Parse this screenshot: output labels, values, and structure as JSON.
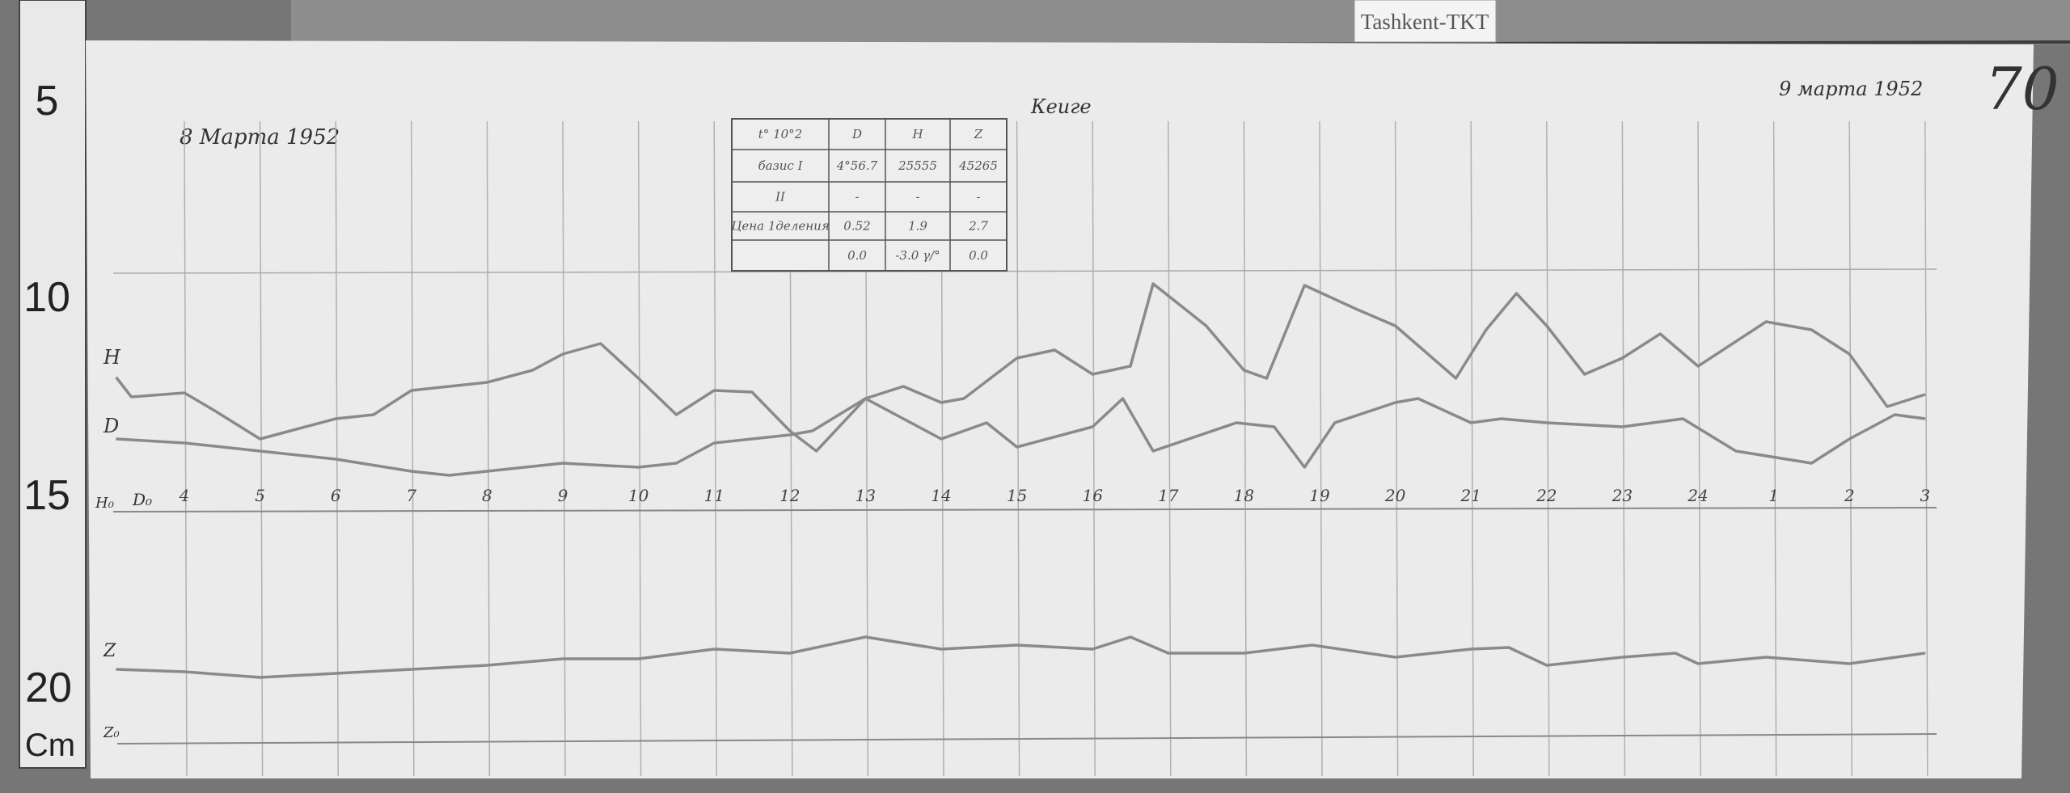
{
  "station_label": "Tashkent-TKT",
  "sheet_number": "70",
  "date_start": "8 Марта 1952",
  "date_end": "9 марта 1952",
  "observer": "Кеиге",
  "ruler": {
    "marks": [
      "5",
      "10",
      "15",
      "20"
    ],
    "unit": "Cm"
  },
  "table": {
    "header": [
      "t° 10°2",
      "D",
      "H",
      "Z"
    ],
    "rows": [
      [
        "базис I",
        "4°56.7",
        "25555",
        "45265"
      ],
      [
        "II",
        "-",
        "-",
        "-"
      ],
      [
        "Цена 1деления",
        "0.52",
        "1.9",
        "2.7"
      ],
      [
        "",
        "0.0",
        "-3.0 γ/°",
        "0.0"
      ]
    ]
  },
  "chart_data": {
    "type": "line",
    "title": "",
    "xlabel": "",
    "ylabel": "",
    "x_tick_labels": [
      "4",
      "5",
      "6",
      "7",
      "8",
      "9",
      "10",
      "11",
      "12",
      "13",
      "14",
      "15",
      "16",
      "17",
      "18",
      "19",
      "20",
      "21",
      "22",
      "23",
      "24",
      "1",
      "2",
      "3"
    ],
    "grid": true,
    "baseline_labels": {
      "H": "H₀",
      "D": "D₀",
      "Z": "Z₀"
    },
    "series": [
      {
        "name": "H",
        "color": "#8a8a8a",
        "x": [
          3.1,
          3.3,
          4,
          4.4,
          5,
          5.4,
          6,
          6.5,
          7,
          7.5,
          8,
          8.6,
          9,
          9.5,
          10,
          10.5,
          11,
          11.5,
          12,
          12.35,
          13,
          13.5,
          14,
          14.3,
          15,
          15.5,
          16,
          16.5,
          16.8,
          17.5,
          18,
          18.3,
          18.8,
          19.5,
          20,
          20.8,
          21.2,
          21.6,
          22,
          22.5,
          23,
          23.5,
          24,
          24.9,
          25.5,
          26,
          26.5,
          27
        ],
        "y": [
          16.6,
          14.2,
          14.7,
          12.5,
          9.0,
          10.0,
          11.5,
          12.0,
          15.0,
          15.5,
          16.0,
          17.5,
          19.5,
          20.8,
          16.5,
          12.0,
          15.0,
          14.8,
          10.0,
          7.5,
          14.0,
          15.5,
          13.5,
          14.0,
          19.0,
          20.0,
          17.0,
          18.0,
          28.2,
          23.0,
          17.5,
          16.5,
          28.0,
          25.0,
          23.0,
          16.5,
          22.5,
          27.0,
          23.0,
          17.0,
          19.0,
          22.0,
          18.0,
          23.5,
          22.5,
          19.5,
          13.0,
          14.5
        ]
      },
      {
        "name": "D",
        "color": "#8a8a8a",
        "x": [
          3.1,
          4,
          5,
          6,
          7,
          7.5,
          8,
          9,
          10,
          10.5,
          11,
          12,
          12.3,
          13,
          14,
          14.6,
          15,
          16,
          16.4,
          16.8,
          17.9,
          18.4,
          18.8,
          19.2,
          20,
          20.3,
          21,
          21.4,
          22,
          23,
          23.8,
          24.5,
          25.5,
          26,
          26.6,
          27
        ],
        "y": [
          9.0,
          8.5,
          7.5,
          6.5,
          5.0,
          4.5,
          5.0,
          6.0,
          5.5,
          6.0,
          8.5,
          9.5,
          10.0,
          14.0,
          9.0,
          11.0,
          8.0,
          10.5,
          14.0,
          7.5,
          11.0,
          10.5,
          5.5,
          11.0,
          13.5,
          14.0,
          11.0,
          11.5,
          11.0,
          10.5,
          11.5,
          7.5,
          6.0,
          9.0,
          12.0,
          11.5
        ]
      },
      {
        "name": "Z",
        "color": "#8a8a8a",
        "x": [
          3.1,
          4,
          5,
          6,
          7,
          8,
          9,
          10,
          11,
          12,
          13,
          14,
          15,
          16,
          16.5,
          17,
          18,
          18.9,
          20,
          21,
          21.5,
          22,
          23,
          23.7,
          24,
          24.9,
          26,
          27
        ],
        "y": [
          9.0,
          8.7,
          8.0,
          8.5,
          9.0,
          9.5,
          10.3,
          10.3,
          11.5,
          11.0,
          13.0,
          11.5,
          12.0,
          11.5,
          13.0,
          11.0,
          11.0,
          12.0,
          10.5,
          11.5,
          11.7,
          9.5,
          10.5,
          11.0,
          9.7,
          10.5,
          9.7,
          11.0
        ]
      }
    ]
  }
}
